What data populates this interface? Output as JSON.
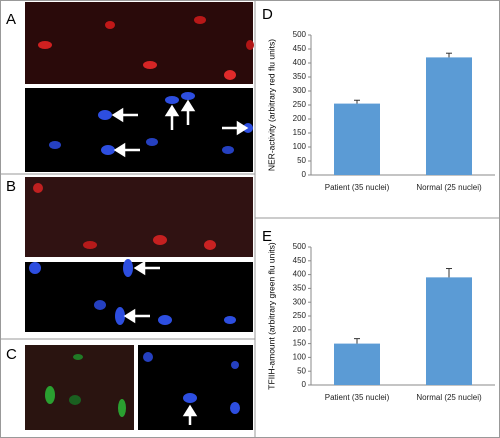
{
  "panel_labels": [
    "A",
    "B",
    "C"
  ],
  "chart_data": [
    {
      "type": "bar",
      "panel": "D",
      "y_label": "NER-activity (arbitrary red flu units)",
      "categories": [
        "Patient (35 nuclei)",
        "Normal (25 nuclei)"
      ],
      "values": [
        255,
        420
      ],
      "errors": [
        12,
        15
      ],
      "color": "#5b9bd5",
      "ylim": [
        0,
        500
      ],
      "yticks": [
        0,
        50,
        100,
        150,
        200,
        250,
        300,
        350,
        400,
        450,
        500
      ]
    },
    {
      "type": "bar",
      "panel": "E",
      "y_label": "TFIIH-amount (arbitrary green flu units)",
      "categories": [
        "Patient (35 nuclei)",
        "Normal (25 nuclei)"
      ],
      "values": [
        150,
        390
      ],
      "errors": [
        18,
        32
      ],
      "color": "#5b9bd5",
      "ylim": [
        0,
        500
      ],
      "yticks": [
        0,
        50,
        100,
        150,
        200,
        250,
        300,
        350,
        400,
        450,
        500
      ]
    }
  ]
}
